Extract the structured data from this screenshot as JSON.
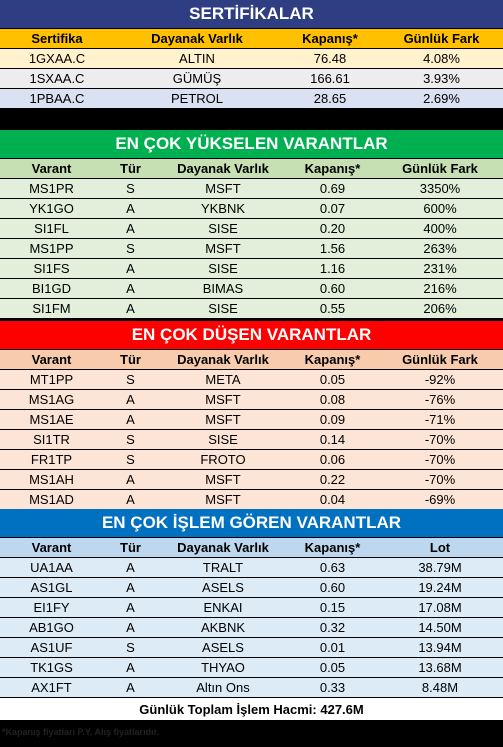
{
  "certificates": {
    "title": "SERTİFİKALAR",
    "headers": [
      "Sertifika",
      "Dayanak Varlık",
      "Kapanış*",
      "Günlük Fark"
    ],
    "rows": [
      [
        "1GXAA.C",
        "ALTIN",
        "76.48",
        "4.08%"
      ],
      [
        "1SXAA.C",
        "GÜMÜŞ",
        "166.61",
        "3.93%"
      ],
      [
        "1PBAA.C",
        "PETROL",
        "28.65",
        "2.69%"
      ]
    ]
  },
  "top_gainers": {
    "title": "EN ÇOK YÜKSELEN VARANTLAR",
    "headers": [
      "Varant",
      "Tür",
      "Dayanak Varlık",
      "Kapanış*",
      "Günlük Fark"
    ],
    "rows": [
      [
        "MS1PR",
        "S",
        "MSFT",
        "0.69",
        "3350%"
      ],
      [
        "YK1GO",
        "A",
        "YKBNK",
        "0.07",
        "600%"
      ],
      [
        "SI1FL",
        "A",
        "SISE",
        "0.20",
        "400%"
      ],
      [
        "MS1PP",
        "S",
        "MSFT",
        "1.56",
        "263%"
      ],
      [
        "SI1FS",
        "A",
        "SISE",
        "1.16",
        "231%"
      ],
      [
        "BI1GD",
        "A",
        "BIMAS",
        "0.60",
        "216%"
      ],
      [
        "SI1FM",
        "A",
        "SISE",
        "0.55",
        "206%"
      ]
    ]
  },
  "top_losers": {
    "title": "EN ÇOK DÜŞEN VARANTLAR",
    "headers": [
      "Varant",
      "Tür",
      "Dayanak Varlık",
      "Kapanış*",
      "Günlük Fark"
    ],
    "rows": [
      [
        "MT1PP",
        "S",
        "META",
        "0.05",
        "-92%"
      ],
      [
        "MS1AG",
        "A",
        "MSFT",
        "0.08",
        "-76%"
      ],
      [
        "MS1AE",
        "A",
        "MSFT",
        "0.09",
        "-71%"
      ],
      [
        "SI1TR",
        "S",
        "SISE",
        "0.14",
        "-70%"
      ],
      [
        "FR1TP",
        "S",
        "FROTO",
        "0.06",
        "-70%"
      ],
      [
        "MS1AH",
        "A",
        "MSFT",
        "0.22",
        "-70%"
      ],
      [
        "MS1AD",
        "A",
        "MSFT",
        "0.04",
        "-69%"
      ]
    ]
  },
  "most_active": {
    "title": "EN ÇOK İŞLEM GÖREN VARANTLAR",
    "headers": [
      "Varant",
      "Tür",
      "Dayanak Varlık",
      "Kapanış*",
      "Lot"
    ],
    "rows": [
      [
        "UA1AA",
        "A",
        "TRALT",
        "0.63",
        "38.79M"
      ],
      [
        "AS1GL",
        "A",
        "ASELS",
        "0.60",
        "19.24M"
      ],
      [
        "EI1FY",
        "A",
        "ENKAI",
        "0.15",
        "17.08M"
      ],
      [
        "AB1GO",
        "A",
        "AKBNK",
        "0.32",
        "14.50M"
      ],
      [
        "AS1UF",
        "S",
        "ASELS",
        "0.01",
        "13.94M"
      ],
      [
        "TK1GS",
        "A",
        "THYAO",
        "0.05",
        "13.68M"
      ],
      [
        "AX1FT",
        "A",
        "Altın Ons",
        "0.33",
        "8.48M"
      ]
    ]
  },
  "total_volume": "Günlük Toplam İşlem Hacmi: 427.6M",
  "footnote": "*Kapanış fiyatları P.Y. Alış fiyatlarıdır."
}
